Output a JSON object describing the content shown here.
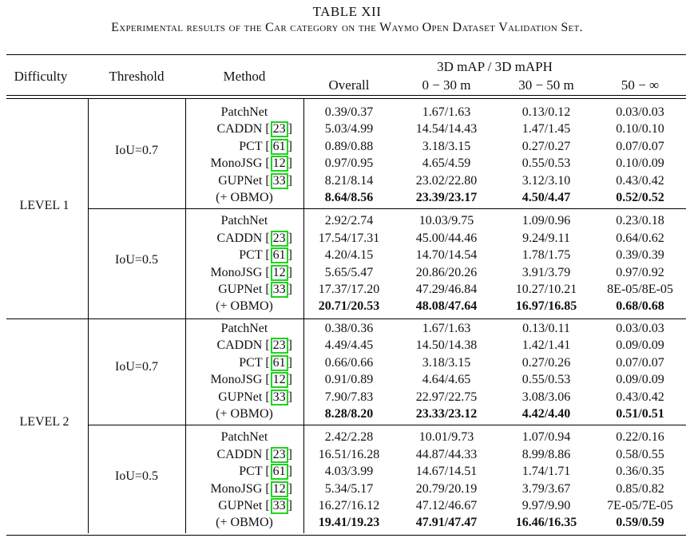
{
  "caption": {
    "number": "TABLE XII",
    "text": "Experimental results of the Car category on the Waymo Open Dataset Validation Set."
  },
  "header": {
    "difficulty": "Difficulty",
    "threshold": "Threshold",
    "method": "Method",
    "group": "3D mAP / 3D mAPH",
    "columns": [
      "Overall",
      "0 − 30 m",
      "30 − 50 m",
      "50 − ∞"
    ]
  },
  "levels": [
    {
      "label": "LEVEL 1",
      "blocks": [
        {
          "threshold": "IoU=0.7",
          "rows": [
            {
              "method": "PatchNet",
              "ref": "",
              "values": [
                "0.39/0.37",
                "1.67/1.63",
                "0.13/0.12",
                "0.03/0.03"
              ],
              "bold": false
            },
            {
              "method": "CADDN",
              "ref": "23",
              "values": [
                "5.03/4.99",
                "14.54/14.43",
                "1.47/1.45",
                "0.10/0.10"
              ],
              "bold": false
            },
            {
              "method": "PCT",
              "ref": "61",
              "values": [
                "0.89/0.88",
                "3.18/3.15",
                "0.27/0.27",
                "0.07/0.07"
              ],
              "bold": false
            },
            {
              "method": "MonoJSG",
              "ref": "12",
              "values": [
                "0.97/0.95",
                "4.65/4.59",
                "0.55/0.53",
                "0.10/0.09"
              ],
              "bold": false
            },
            {
              "method": "GUPNet",
              "ref": "33",
              "values": [
                "8.21/8.14",
                "23.02/22.80",
                "3.12/3.10",
                "0.43/0.42"
              ],
              "bold": false
            },
            {
              "method": "(+ OBMO)",
              "ref": "",
              "values": [
                "8.64/8.56",
                "23.39/23.17",
                "4.50/4.47",
                "0.52/0.52"
              ],
              "bold": true
            }
          ]
        },
        {
          "threshold": "IoU=0.5",
          "rows": [
            {
              "method": "PatchNet",
              "ref": "",
              "values": [
                "2.92/2.74",
                "10.03/9.75",
                "1.09/0.96",
                "0.23/0.18"
              ],
              "bold": false
            },
            {
              "method": "CADDN",
              "ref": "23",
              "values": [
                "17.54/17.31",
                "45.00/44.46",
                "9.24/9.11",
                "0.64/0.62"
              ],
              "bold": false
            },
            {
              "method": "PCT",
              "ref": "61",
              "values": [
                "4.20/4.15",
                "14.70/14.54",
                "1.78/1.75",
                "0.39/0.39"
              ],
              "bold": false
            },
            {
              "method": "MonoJSG",
              "ref": "12",
              "values": [
                "5.65/5.47",
                "20.86/20.26",
                "3.91/3.79",
                "0.97/0.92"
              ],
              "bold": false
            },
            {
              "method": "GUPNet",
              "ref": "33",
              "values": [
                "17.37/17.20",
                "47.29/46.84",
                "10.27/10.21",
                "8E-05/8E-05"
              ],
              "bold": false
            },
            {
              "method": "(+ OBMO)",
              "ref": "",
              "values": [
                "20.71/20.53",
                "48.08/47.64",
                "16.97/16.85",
                "0.68/0.68"
              ],
              "bold": true
            }
          ]
        }
      ]
    },
    {
      "label": "LEVEL 2",
      "blocks": [
        {
          "threshold": "IoU=0.7",
          "rows": [
            {
              "method": "PatchNet",
              "ref": "",
              "values": [
                "0.38/0.36",
                "1.67/1.63",
                "0.13/0.11",
                "0.03/0.03"
              ],
              "bold": false
            },
            {
              "method": "CADDN",
              "ref": "23",
              "values": [
                "4.49/4.45",
                "14.50/14.38",
                "1.42/1.41",
                "0.09/0.09"
              ],
              "bold": false
            },
            {
              "method": "PCT",
              "ref": "61",
              "values": [
                "0.66/0.66",
                "3.18/3.15",
                "0.27/0.26",
                "0.07/0.07"
              ],
              "bold": false
            },
            {
              "method": "MonoJSG",
              "ref": "12",
              "values": [
                "0.91/0.89",
                "4.64/4.65",
                "0.55/0.53",
                "0.09/0.09"
              ],
              "bold": false
            },
            {
              "method": "GUPNet",
              "ref": "33",
              "values": [
                "7.90/7.83",
                "22.97/22.75",
                "3.08/3.06",
                "0.43/0.42"
              ],
              "bold": false
            },
            {
              "method": "(+ OBMO)",
              "ref": "",
              "values": [
                "8.28/8.20",
                "23.33/23.12",
                "4.42/4.40",
                "0.51/0.51"
              ],
              "bold": true
            }
          ]
        },
        {
          "threshold": "IoU=0.5",
          "rows": [
            {
              "method": "PatchNet",
              "ref": "",
              "values": [
                "2.42/2.28",
                "10.01/9.73",
                "1.07/0.94",
                "0.22/0.16"
              ],
              "bold": false
            },
            {
              "method": "CADDN",
              "ref": "23",
              "values": [
                "16.51/16.28",
                "44.87/44.33",
                "8.99/8.86",
                "0.58/0.55"
              ],
              "bold": false
            },
            {
              "method": "PCT",
              "ref": "61",
              "values": [
                "4.03/3.99",
                "14.67/14.51",
                "1.74/1.71",
                "0.36/0.35"
              ],
              "bold": false
            },
            {
              "method": "MonoJSG",
              "ref": "12",
              "values": [
                "5.34/5.17",
                "20.79/20.19",
                "3.79/3.67",
                "0.85/0.82"
              ],
              "bold": false
            },
            {
              "method": "GUPNet",
              "ref": "33",
              "values": [
                "16.27/16.12",
                "47.12/46.67",
                "9.97/9.90",
                "7E-05/7E-05"
              ],
              "bold": false
            },
            {
              "method": "(+ OBMO)",
              "ref": "",
              "values": [
                "19.41/19.23",
                "47.91/47.47",
                "16.46/16.35",
                "0.59/0.59"
              ],
              "bold": true
            }
          ]
        }
      ]
    }
  ]
}
